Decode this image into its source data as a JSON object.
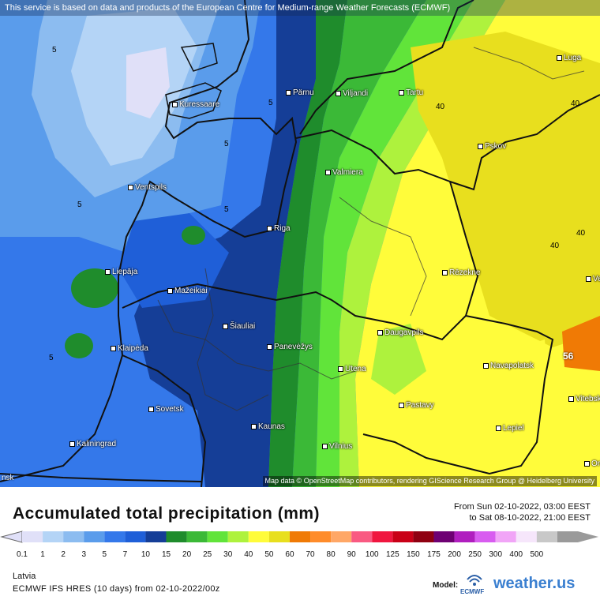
{
  "notice": "This service is based on data and products of the European Centre for Medium-range Weather Forecasts (ECMWF)",
  "attribution": "Map data © OpenStreetMap contributors, rendering GIScience Research Group @ Heidelberg University",
  "cities": [
    {
      "name": "Pärnu"
    },
    {
      "name": "Viljandi"
    },
    {
      "name": "Tartu"
    },
    {
      "name": "Luga"
    },
    {
      "name": "Kuressaare"
    },
    {
      "name": "Pskov"
    },
    {
      "name": "Valmiera"
    },
    {
      "name": "Ventspils"
    },
    {
      "name": "Riga"
    },
    {
      "name": "Rēzekne"
    },
    {
      "name": "Liepāja"
    },
    {
      "name": "Mažeikiai"
    },
    {
      "name": "Šiauliai"
    },
    {
      "name": "Daugavpils"
    },
    {
      "name": "Panevėžys"
    },
    {
      "name": "Klaipėda"
    },
    {
      "name": "Navapolatsk"
    },
    {
      "name": "Utena"
    },
    {
      "name": "Sovetsk"
    },
    {
      "name": "Pastavy"
    },
    {
      "name": "Vitebsk"
    },
    {
      "name": "Kaunas"
    },
    {
      "name": "Lepiel"
    },
    {
      "name": "Kaliningrad"
    },
    {
      "name": "Vilnius"
    },
    {
      "name": "Orš"
    },
    {
      "name": "Vel"
    }
  ],
  "iso_labels": [
    "5",
    "5",
    "5",
    "5",
    "5",
    "5",
    "40",
    "40",
    "40",
    "40"
  ],
  "max_value": "56",
  "edge_label": "nsk",
  "legend": {
    "title": "Accumulated total precipitation (mm)",
    "from": "From Sun 02-10-2022, 03:00 EEST",
    "to": "to Sat 08-10-2022, 21:00 EEST",
    "region": "Latvia",
    "model": "ECMWF IFS HRES (10 days) from  02-10-2022/00z",
    "model_label": "Model:",
    "model_brand": "ECMWF",
    "brand": "weather.us",
    "ticks": [
      "0.1",
      "1",
      "2",
      "3",
      "5",
      "7",
      "10",
      "15",
      "20",
      "25",
      "30",
      "40",
      "50",
      "60",
      "70",
      "80",
      "90",
      "100",
      "125",
      "150",
      "175",
      "200",
      "250",
      "300",
      "400",
      "500"
    ],
    "colors": [
      "#e0e0f8",
      "#b4d4f6",
      "#8cbcf0",
      "#5a9ceb",
      "#3478ea",
      "#1f5fd8",
      "#153e97",
      "#1f8c2c",
      "#3bb937",
      "#61e43a",
      "#aef23d",
      "#fffc3a",
      "#e8df1e",
      "#f07a05",
      "#ff8c2a",
      "#ffa766",
      "#f95a82",
      "#f0163f",
      "#c90017",
      "#8f0011",
      "#6e0073",
      "#b01ebf",
      "#d85cf0",
      "#f1a5f7",
      "#f6e6fb",
      "#c8c8c8",
      "#9a9a9a"
    ]
  }
}
